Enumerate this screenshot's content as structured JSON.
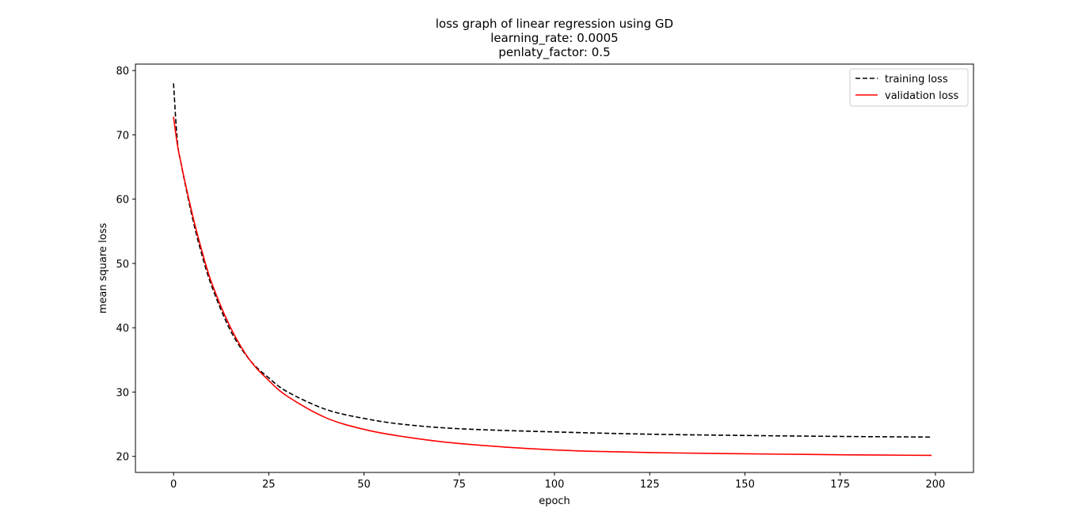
{
  "chart_data": {
    "type": "line",
    "title_lines": [
      "loss graph of linear regression using GD",
      "learning_rate: 0.0005",
      "penlaty_factor: 0.5"
    ],
    "xlabel": "epoch",
    "ylabel": "mean square loss",
    "xlim": [
      -10,
      210
    ],
    "ylim": [
      17.5,
      81
    ],
    "xticks": [
      0,
      25,
      50,
      75,
      100,
      125,
      150,
      175,
      200
    ],
    "yticks": [
      20,
      30,
      40,
      50,
      60,
      70,
      80
    ],
    "grid": false,
    "legend_position": "top-right",
    "series": [
      {
        "name": "training loss",
        "color": "#000000",
        "style": "dashed",
        "x": [
          0,
          1,
          2,
          3,
          5,
          7,
          10,
          15,
          20,
          25,
          30,
          40,
          50,
          60,
          75,
          100,
          125,
          150,
          175,
          199
        ],
        "y": [
          78.0,
          69.0,
          65.5,
          62.5,
          57.0,
          52.3,
          46.5,
          39.5,
          35.0,
          32.2,
          30.0,
          27.3,
          25.9,
          25.0,
          24.3,
          23.8,
          23.45,
          23.25,
          23.1,
          23.0
        ]
      },
      {
        "name": "validation loss",
        "color": "#ff0000",
        "style": "solid",
        "x": [
          0,
          1,
          2,
          3,
          5,
          7,
          10,
          15,
          20,
          25,
          30,
          40,
          50,
          60,
          75,
          100,
          125,
          150,
          175,
          199
        ],
        "y": [
          72.8,
          68.5,
          65.5,
          62.7,
          57.5,
          52.9,
          47.0,
          40.0,
          35.0,
          31.8,
          29.3,
          26.0,
          24.2,
          23.1,
          22.0,
          21.0,
          20.6,
          20.4,
          20.25,
          20.15
        ]
      }
    ]
  }
}
